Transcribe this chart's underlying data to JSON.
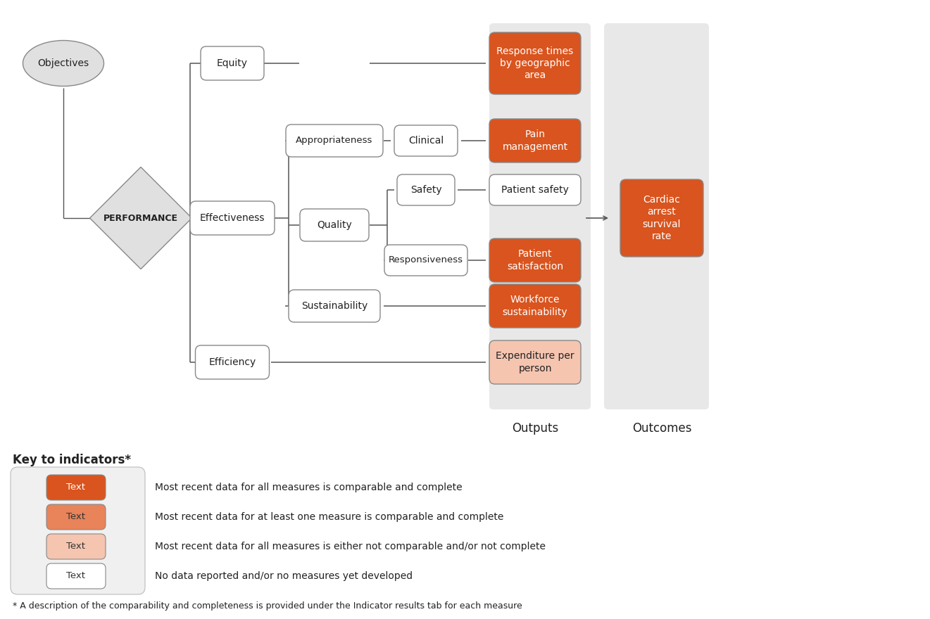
{
  "bg_color": "#ffffff",
  "gray_panel_color": "#e8e8e8",
  "orange_dark": "#d9541e",
  "orange_mid": "#e8835a",
  "orange_light": "#f5c5b0",
  "box_border": "#888888",
  "line_color": "#555555",
  "title_outputs": "Outputs",
  "title_outcomes": "Outcomes",
  "key_title": "Key to indicators*",
  "footnote": "* A description of the comparability and completeness is provided under the Indicator results tab for each measure",
  "key_items": [
    {
      "color": "#d9541e",
      "text_color": "#ffffff",
      "label": "Text",
      "desc": "Most recent data for all measures is comparable and complete"
    },
    {
      "color": "#e8835a",
      "text_color": "#333333",
      "label": "Text",
      "desc": "Most recent data for at least one measure is comparable and complete"
    },
    {
      "color": "#f5c5b0",
      "text_color": "#333333",
      "label": "Text",
      "desc": "Most recent data for all measures is either not comparable and/or not complete"
    },
    {
      "color": "#ffffff",
      "text_color": "#333333",
      "label": "Text",
      "desc": "No data reported and/or no measures yet developed"
    }
  ]
}
